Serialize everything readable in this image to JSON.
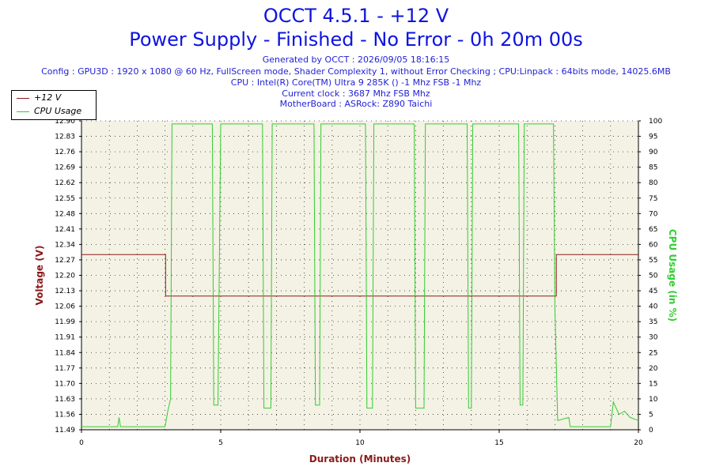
{
  "header": {
    "title": "OCCT 4.5.1 - +12 V",
    "subtitle": "Power Supply - Finished - No Error - 0h 20m 00s",
    "lines": [
      "Generated by OCCT : 2026/09/05 18:16:15",
      "Config : GPU3D : 1920 x 1080 @ 60 Hz, FullScreen mode, Shader Complexity 1, without Error Checking ; CPU:Linpack : 64bits mode, 14025.6MB",
      "CPU : Intel(R) Core(TM) Ultra 9 285K () -1 Mhz FSB -1 Mhz",
      "Current clock : 3687 Mhz FSB  Mhz",
      "MotherBoard : ASRock: Z890 Taichi"
    ]
  },
  "legend": [
    {
      "label": "+12 V",
      "color": "#8b1a1a"
    },
    {
      "label": "CPU Usage",
      "color": "#33cc33"
    }
  ],
  "chart_data": {
    "type": "line",
    "xlabel": "Duration (Minutes)",
    "ylabel_left": "Voltage (V)",
    "ylabel_right": "CPU Usage (in %)",
    "xlim": [
      0,
      20
    ],
    "x_ticks": [
      "0",
      "5",
      "10",
      "15",
      "20"
    ],
    "y_left_lim": [
      11.49,
      12.9
    ],
    "y_left_ticks": [
      "11.49",
      "11.56",
      "11.63",
      "11.70",
      "11.77",
      "11.84",
      "11.91",
      "11.99",
      "12.06",
      "12.13",
      "12.20",
      "12.27",
      "12.34",
      "12.41",
      "12.48",
      "12.55",
      "12.62",
      "12.69",
      "12.76",
      "12.83",
      "12.90"
    ],
    "y_right_lim": [
      0,
      100
    ],
    "y_right_ticks": [
      "0",
      "5",
      "10",
      "15",
      "20",
      "25",
      "30",
      "35",
      "40",
      "45",
      "50",
      "55",
      "60",
      "65",
      "70",
      "75",
      "80",
      "85",
      "90",
      "95",
      "100"
    ],
    "grid": true,
    "legend_position": "top-left",
    "colors": {
      "voltage": "#8b1a1a",
      "cpu": "#33cc33",
      "plot_bg": "#f4f2e4",
      "axis_label_left": "#8b1a1a",
      "axis_label_right": "#33cc33"
    },
    "series": [
      {
        "name": "+12 V",
        "axis": "left",
        "x": [
          0,
          3.0,
          3.02,
          3.3,
          4.75,
          4.9,
          6.55,
          6.8,
          8.4,
          8.55,
          10.2,
          10.45,
          12.0,
          12.3,
          13.85,
          14.0,
          15.75,
          15.85,
          17.0,
          17.05,
          20
        ],
        "values": [
          12.29,
          12.29,
          12.1,
          12.1,
          12.1,
          12.1,
          12.1,
          12.1,
          12.1,
          12.1,
          12.1,
          12.1,
          12.1,
          12.1,
          12.1,
          12.1,
          12.1,
          12.1,
          12.1,
          12.29,
          12.29
        ]
      },
      {
        "name": "CPU Usage",
        "axis": "right",
        "x": [
          0,
          1.3,
          1.35,
          1.4,
          3.0,
          3.1,
          3.2,
          3.25,
          4.7,
          4.75,
          4.9,
          5.0,
          6.5,
          6.55,
          6.8,
          6.85,
          8.35,
          8.4,
          8.55,
          8.6,
          10.2,
          10.25,
          10.45,
          10.5,
          11.95,
          12.0,
          12.3,
          12.35,
          13.85,
          13.9,
          14.0,
          14.05,
          15.7,
          15.75,
          15.85,
          15.9,
          16.95,
          17.0,
          17.1,
          17.5,
          17.55,
          19.0,
          19.1,
          19.3,
          19.5,
          19.7,
          20
        ],
        "values": [
          1,
          1,
          4,
          1,
          1,
          6,
          10,
          99,
          99,
          8,
          8,
          99,
          99,
          7,
          7,
          99,
          99,
          8,
          8,
          99,
          99,
          7,
          7,
          99,
          99,
          7,
          7,
          99,
          99,
          7,
          7,
          99,
          99,
          8,
          8,
          99,
          99,
          40,
          3,
          4,
          1,
          1,
          9,
          5,
          6,
          4,
          3
        ]
      }
    ]
  }
}
